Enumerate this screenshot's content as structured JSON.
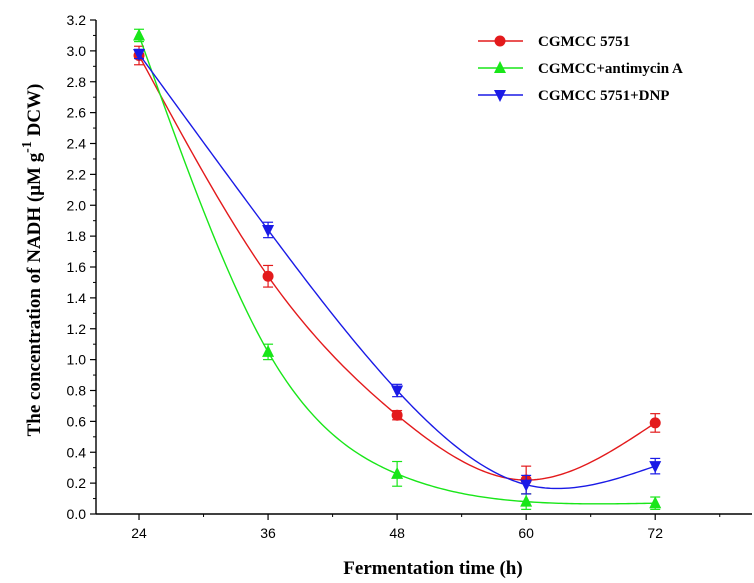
{
  "chart_data": {
    "type": "line",
    "title": "",
    "xlabel": "Fermentation time (h)",
    "ylabel_main": "The concentration of NADH (μM g",
    "ylabel_sup": "-1",
    "ylabel_tail": " DCW)",
    "x": [
      24,
      36,
      48,
      60,
      72
    ],
    "xticks": [
      "24",
      "36",
      "48",
      "60",
      "72"
    ],
    "xlim": [
      20,
      81
    ],
    "ylim": [
      0,
      3.2
    ],
    "yticks": [
      "0.0",
      "0.2",
      "0.4",
      "0.6",
      "0.8",
      "1.0",
      "1.2",
      "1.4",
      "1.6",
      "1.8",
      "2.0",
      "2.2",
      "2.4",
      "2.6",
      "2.8",
      "3.0",
      "3.2"
    ],
    "grid": false,
    "legend_position": "top-right",
    "series": [
      {
        "name": "CGMCC 5751",
        "color": "#e31a1c",
        "marker": "circle",
        "values": [
          2.97,
          1.54,
          0.64,
          0.22,
          0.59
        ],
        "errors": [
          0.06,
          0.07,
          0.03,
          0.09,
          0.06
        ]
      },
      {
        "name": "CGMCC+antimycin A",
        "color": "#19e619",
        "marker": "triangle-up",
        "values": [
          3.1,
          1.05,
          0.26,
          0.08,
          0.07
        ],
        "errors": [
          0.04,
          0.05,
          0.08,
          0.05,
          0.04
        ]
      },
      {
        "name": "CGMCC 5751+DNP",
        "color": "#1a1ae6",
        "marker": "triangle-down",
        "values": [
          2.98,
          1.84,
          0.8,
          0.19,
          0.31
        ],
        "errors": [
          0.03,
          0.05,
          0.04,
          0.06,
          0.05
        ]
      }
    ]
  }
}
